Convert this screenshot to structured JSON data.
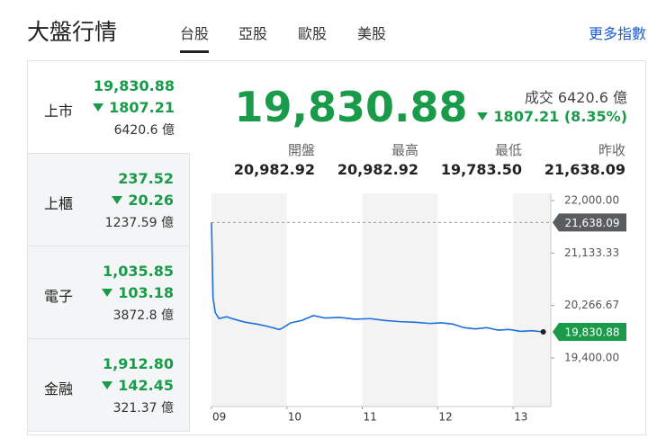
{
  "header": {
    "title": "大盤行情",
    "tabs": [
      "台股",
      "亞股",
      "歐股",
      "美股"
    ],
    "more": "更多指數"
  },
  "sidebar": [
    {
      "name": "上市",
      "price": "19,830.88",
      "change": "1807.21",
      "volume": "6420.6 億"
    },
    {
      "name": "上櫃",
      "price": "237.52",
      "change": "20.26",
      "volume": "1237.59 億"
    },
    {
      "name": "電子",
      "price": "1,035.85",
      "change": "103.18",
      "volume": "3872.8 億"
    },
    {
      "name": "金融",
      "price": "1,912.80",
      "change": "142.45",
      "volume": "321.37 億"
    }
  ],
  "quote": {
    "price": "19,830.88",
    "volume": "成交 6420.6 億",
    "change": "1807.21 (8.35%)",
    "stats": [
      {
        "label": "開盤",
        "value": "20,982.92"
      },
      {
        "label": "最高",
        "value": "20,982.92"
      },
      {
        "label": "最低",
        "value": "19,783.50"
      },
      {
        "label": "昨收",
        "value": "21,638.09"
      }
    ]
  },
  "chart_data": {
    "type": "line",
    "x": [
      9,
      9.02,
      9.05,
      9.1,
      9.2,
      9.3,
      9.45,
      9.6,
      9.75,
      9.9,
      9.95,
      10.05,
      10.2,
      10.35,
      10.5,
      10.7,
      10.9,
      11.1,
      11.3,
      11.5,
      11.7,
      11.9,
      12.05,
      12.2,
      12.35,
      12.5,
      12.65,
      12.8,
      12.95,
      13.1,
      13.25,
      13.4
    ],
    "series": [
      {
        "color": "#1d6fdc",
        "values": [
          21638.09,
          20400,
          20150,
          20050,
          20080,
          20040,
          19990,
          19960,
          19920,
          19870,
          19900,
          19980,
          20020,
          20100,
          20060,
          20070,
          20040,
          20050,
          20020,
          20000,
          19990,
          19970,
          19980,
          19960,
          19900,
          19880,
          19900,
          19860,
          19870,
          19840,
          19850,
          19830.88
        ]
      }
    ],
    "xlim": [
      9,
      13.5
    ],
    "xticks": [
      {
        "value": 9,
        "label": "09"
      },
      {
        "value": 10,
        "label": "10"
      },
      {
        "value": 11,
        "label": "11"
      },
      {
        "value": 12,
        "label": "12"
      },
      {
        "value": 13,
        "label": "13"
      }
    ],
    "ylim": [
      19400,
      22000
    ],
    "yticks": [
      {
        "value": 22000,
        "label": "22,000.00"
      },
      {
        "value": 21133.33,
        "label": "21,133.33"
      },
      {
        "value": 20266.67,
        "label": "20,266.67"
      },
      {
        "value": 19400,
        "label": "19,400.00"
      }
    ],
    "markers": [
      {
        "value": 21638.09,
        "label": "21,638.09",
        "color": "#5a5d60"
      },
      {
        "value": 19830.88,
        "label": "19,830.88",
        "color": "#1a9b4a"
      }
    ]
  }
}
